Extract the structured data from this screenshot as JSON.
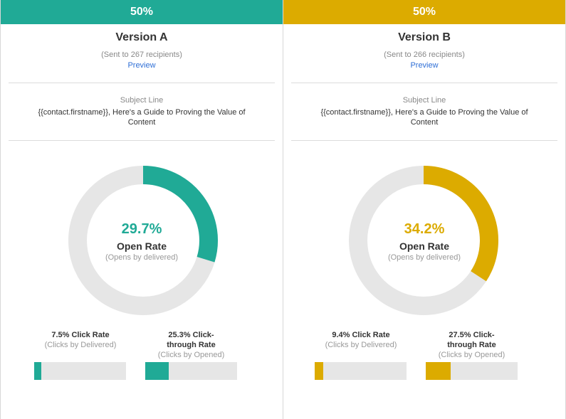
{
  "colors": {
    "version_a": "#20aa96",
    "version_b": "#dcab00",
    "track": "#e6e6e6"
  },
  "panels": [
    {
      "split": "50%",
      "title": "Version A",
      "sent": "(Sent to 267 recipients)",
      "preview": "Preview",
      "subject_label": "Subject Line",
      "subject_text": "{{contact.firstname}}, Here's a Guide to Proving the Value of Content",
      "open_rate": "29.7%",
      "open_rate_value": 29.7,
      "open_rate_label": "Open Rate",
      "open_rate_sub": "(Opens by delivered)",
      "click_rate_title": "7.5% Click Rate",
      "click_rate_sub": "(Clicks by Delivered)",
      "click_rate_value": 7.5,
      "ctr_title": "25.3% Click-through Rate",
      "ctr_sub": "(Clicks by Opened)",
      "ctr_value": 25.3
    },
    {
      "split": "50%",
      "title": "Version B",
      "sent": "(Sent to 266 recipients)",
      "preview": "Preview",
      "subject_label": "Subject Line",
      "subject_text": "{{contact.firstname}}, Here's a Guide to Proving the Value of Content",
      "open_rate": "34.2%",
      "open_rate_value": 34.2,
      "open_rate_label": "Open Rate",
      "open_rate_sub": "(Opens by delivered)",
      "click_rate_title": "9.4% Click Rate",
      "click_rate_sub": "(Clicks by Delivered)",
      "click_rate_value": 9.4,
      "ctr_title": "27.5% Click-through Rate",
      "ctr_sub": "(Clicks by Opened)",
      "ctr_value": 27.5
    }
  ]
}
